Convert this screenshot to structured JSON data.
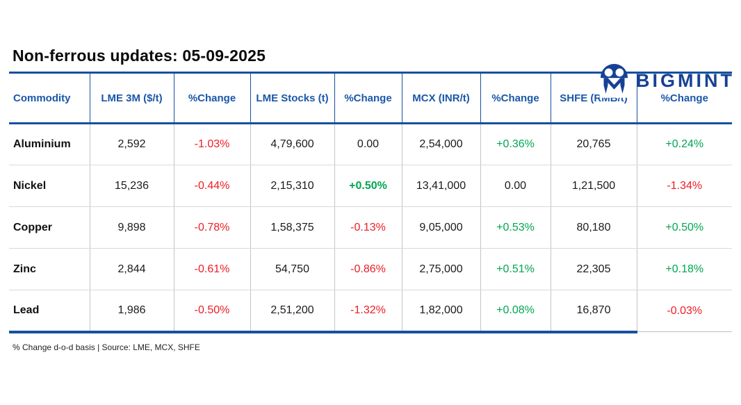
{
  "brand": {
    "name": "BIGMINT",
    "logo_color": "#164194"
  },
  "header": {
    "title": "Non-ferrous updates: 05-09-2025"
  },
  "colors": {
    "accent_blue": "#15509f",
    "header_text_blue": "#1b57a8",
    "positive_green": "#00a651",
    "negative_red": "#ed1c24"
  },
  "table": {
    "columns": [
      "Commodity",
      "LME 3M ($/t)",
      "%Change",
      "LME Stocks (t)",
      "%Change",
      "MCX (INR/t)",
      "%Change",
      "SHFE (RMB/t)",
      "%Change"
    ],
    "rows": [
      {
        "commodity": "Aluminium",
        "values": [
          {
            "text": "2,592",
            "tone": "neutral"
          },
          {
            "text": "-1.03%",
            "tone": "negative"
          },
          {
            "text": "4,79,600",
            "tone": "neutral"
          },
          {
            "text": "0.00",
            "tone": "neutral"
          },
          {
            "text": "2,54,000",
            "tone": "neutral"
          },
          {
            "text": "+0.36%",
            "tone": "positive"
          },
          {
            "text": "20,765",
            "tone": "neutral"
          },
          {
            "text": "+0.24%",
            "tone": "positive"
          }
        ]
      },
      {
        "commodity": "Nickel",
        "values": [
          {
            "text": "15,236",
            "tone": "neutral"
          },
          {
            "text": "-0.44%",
            "tone": "negative"
          },
          {
            "text": "2,15,310",
            "tone": "neutral"
          },
          {
            "text": "+0.50%",
            "tone": "positive",
            "bold": true
          },
          {
            "text": "13,41,000",
            "tone": "neutral"
          },
          {
            "text": "0.00",
            "tone": "neutral"
          },
          {
            "text": "1,21,500",
            "tone": "neutral"
          },
          {
            "text": "-1.34%",
            "tone": "negative"
          }
        ]
      },
      {
        "commodity": "Copper",
        "values": [
          {
            "text": "9,898",
            "tone": "neutral"
          },
          {
            "text": "-0.78%",
            "tone": "negative"
          },
          {
            "text": "1,58,375",
            "tone": "neutral"
          },
          {
            "text": "-0.13%",
            "tone": "negative"
          },
          {
            "text": "9,05,000",
            "tone": "neutral"
          },
          {
            "text": "+0.53%",
            "tone": "positive"
          },
          {
            "text": "80,180",
            "tone": "neutral"
          },
          {
            "text": "+0.50%",
            "tone": "positive"
          }
        ]
      },
      {
        "commodity": "Zinc",
        "values": [
          {
            "text": "2,844",
            "tone": "neutral"
          },
          {
            "text": "-0.61%",
            "tone": "negative"
          },
          {
            "text": "54,750",
            "tone": "neutral"
          },
          {
            "text": "-0.86%",
            "tone": "negative"
          },
          {
            "text": "2,75,000",
            "tone": "neutral"
          },
          {
            "text": "+0.51%",
            "tone": "positive"
          },
          {
            "text": "22,305",
            "tone": "neutral"
          },
          {
            "text": "+0.18%",
            "tone": "positive"
          }
        ]
      },
      {
        "commodity": "Lead",
        "values": [
          {
            "text": "1,986",
            "tone": "neutral"
          },
          {
            "text": "-0.50%",
            "tone": "negative"
          },
          {
            "text": "2,51,200",
            "tone": "neutral"
          },
          {
            "text": "-1.32%",
            "tone": "negative"
          },
          {
            "text": "1,82,000",
            "tone": "neutral"
          },
          {
            "text": "+0.08%",
            "tone": "positive"
          },
          {
            "text": "16,870",
            "tone": "neutral"
          },
          {
            "text": "-0.03%",
            "tone": "negative"
          }
        ]
      }
    ]
  },
  "footer": {
    "note": "% Change d-o-d basis | Source: LME, MCX, SHFE"
  },
  "chart_data": {
    "type": "table",
    "title": "Non-ferrous updates: 05-09-2025",
    "columns": [
      "Commodity",
      "LME 3M ($/t)",
      "%Change",
      "LME Stocks (t)",
      "%Change",
      "MCX (INR/t)",
      "%Change",
      "SHFE (RMB/t)",
      "%Change"
    ],
    "rows": [
      [
        "Aluminium",
        "2,592",
        "-1.03%",
        "4,79,600",
        "0.00",
        "2,54,000",
        "+0.36%",
        "20,765",
        "+0.24%"
      ],
      [
        "Nickel",
        "15,236",
        "-0.44%",
        "2,15,310",
        "+0.50%",
        "13,41,000",
        "0.00",
        "1,21,500",
        "-1.34%"
      ],
      [
        "Copper",
        "9,898",
        "-0.78%",
        "1,58,375",
        "-0.13%",
        "9,05,000",
        "+0.53%",
        "80,180",
        "+0.50%"
      ],
      [
        "Zinc",
        "2,844",
        "-0.61%",
        "54,750",
        "-0.86%",
        "2,75,000",
        "+0.51%",
        "22,305",
        "+0.18%"
      ],
      [
        "Lead",
        "1,986",
        "-0.50%",
        "2,51,200",
        "-1.32%",
        "1,82,000",
        "+0.08%",
        "16,870",
        "-0.03%"
      ]
    ],
    "footnote": "% Change d-o-d basis | Source: LME, MCX, SHFE"
  }
}
